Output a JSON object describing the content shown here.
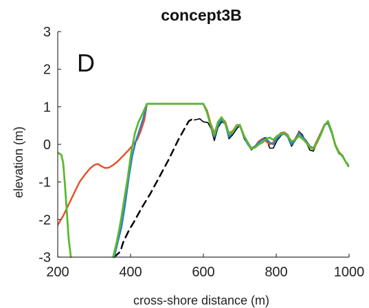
{
  "chart_data": {
    "type": "line",
    "title": "concept3B",
    "panel_letter": "D",
    "xlabel": "cross-shore distance (m)",
    "ylabel": "elevation (m)",
    "xlim": [
      200,
      1000
    ],
    "ylim": [
      -3,
      3
    ],
    "xticks": [
      200,
      400,
      600,
      800,
      1000
    ],
    "yticks": [
      -3,
      -2,
      -1,
      0,
      1,
      2,
      3
    ],
    "grid": false,
    "box": false,
    "series": [
      {
        "color": "#000000",
        "dash": "10,7",
        "width": 2.5,
        "points": [
          [
            355,
            -3.0
          ],
          [
            372,
            -2.85
          ],
          [
            380,
            -2.6
          ],
          [
            395,
            -2.3
          ],
          [
            410,
            -2.05
          ],
          [
            430,
            -1.7
          ],
          [
            455,
            -1.3
          ],
          [
            480,
            -0.85
          ],
          [
            505,
            -0.4
          ],
          [
            530,
            0.1
          ],
          [
            550,
            0.45
          ],
          [
            560,
            0.62
          ],
          [
            575,
            0.7
          ]
        ]
      },
      {
        "color": "#000000",
        "dash": "",
        "width": 1.6,
        "points": [
          [
            575,
            0.65
          ],
          [
            590,
            0.68
          ],
          [
            600,
            0.6
          ],
          [
            612,
            0.58
          ],
          [
            622,
            0.4
          ],
          [
            630,
            0.1
          ],
          [
            640,
            0.45
          ],
          [
            650,
            0.6
          ],
          [
            660,
            0.55
          ],
          [
            670,
            0.15
          ],
          [
            680,
            0.25
          ],
          [
            692,
            0.42
          ],
          [
            700,
            0.5
          ],
          [
            712,
            0.15
          ],
          [
            722,
            0.0
          ],
          [
            732,
            -0.15
          ],
          [
            742,
            -0.05
          ],
          [
            752,
            0.05
          ],
          [
            762,
            0.15
          ],
          [
            772,
            0.18
          ],
          [
            782,
            -0.1
          ],
          [
            792,
            -0.1
          ],
          [
            802,
            0.1
          ],
          [
            812,
            0.22
          ],
          [
            822,
            0.32
          ],
          [
            832,
            0.18
          ],
          [
            842,
            -0.05
          ],
          [
            852,
            0.1
          ],
          [
            862,
            0.35
          ],
          [
            872,
            0.25
          ],
          [
            882,
            0.05
          ],
          [
            892,
            -0.15
          ],
          [
            902,
            -0.18
          ],
          [
            912,
            0.05
          ],
          [
            922,
            0.3
          ],
          [
            932,
            0.52
          ],
          [
            942,
            0.55
          ],
          [
            952,
            0.3
          ],
          [
            962,
            -0.05
          ],
          [
            972,
            -0.25
          ],
          [
            982,
            -0.3
          ],
          [
            990,
            -0.45
          ],
          [
            998,
            -0.55
          ]
        ]
      },
      {
        "color": "#e8502a",
        "dash": "",
        "width": 2.5,
        "points": [
          [
            200,
            -2.15
          ],
          [
            215,
            -1.9
          ],
          [
            230,
            -1.6
          ],
          [
            245,
            -1.3
          ],
          [
            260,
            -1.0
          ],
          [
            275,
            -0.8
          ],
          [
            288,
            -0.65
          ],
          [
            300,
            -0.55
          ],
          [
            310,
            -0.52
          ],
          [
            320,
            -0.58
          ],
          [
            330,
            -0.63
          ],
          [
            340,
            -0.62
          ],
          [
            352,
            -0.55
          ],
          [
            365,
            -0.45
          ],
          [
            380,
            -0.3
          ],
          [
            395,
            -0.15
          ],
          [
            408,
            0.0
          ],
          [
            418,
            0.12
          ],
          [
            428,
            0.35
          ],
          [
            438,
            0.65
          ],
          [
            445,
            1.08
          ],
          [
            600,
            1.08
          ],
          [
            610,
            0.9
          ],
          [
            620,
            0.55
          ],
          [
            630,
            0.3
          ],
          [
            640,
            0.55
          ],
          [
            650,
            0.7
          ],
          [
            660,
            0.6
          ],
          [
            670,
            0.3
          ],
          [
            680,
            0.35
          ],
          [
            692,
            0.52
          ],
          [
            700,
            0.5
          ],
          [
            712,
            0.2
          ],
          [
            722,
            0.05
          ],
          [
            732,
            -0.1
          ],
          [
            742,
            -0.05
          ],
          [
            752,
            0.08
          ],
          [
            762,
            0.15
          ],
          [
            772,
            0.08
          ],
          [
            782,
            0.0
          ],
          [
            792,
            0.05
          ],
          [
            802,
            0.2
          ],
          [
            812,
            0.3
          ],
          [
            822,
            0.32
          ],
          [
            832,
            0.25
          ],
          [
            842,
            0.0
          ],
          [
            852,
            0.15
          ],
          [
            862,
            0.32
          ],
          [
            872,
            0.2
          ],
          [
            882,
            0.1
          ],
          [
            892,
            -0.05
          ],
          [
            902,
            -0.1
          ],
          [
            912,
            0.1
          ],
          [
            922,
            0.3
          ],
          [
            932,
            0.52
          ],
          [
            942,
            0.6
          ],
          [
            952,
            0.35
          ],
          [
            962,
            0.0
          ],
          [
            972,
            -0.2
          ],
          [
            982,
            -0.3
          ],
          [
            990,
            -0.45
          ],
          [
            998,
            -0.55
          ]
        ]
      },
      {
        "color": "#2a7fc9",
        "dash": "",
        "width": 2.5,
        "points": [
          [
            355,
            -3.0
          ],
          [
            365,
            -2.6
          ],
          [
            375,
            -2.2
          ],
          [
            385,
            -1.6
          ],
          [
            395,
            -0.9
          ],
          [
            405,
            -0.3
          ],
          [
            415,
            0.1
          ],
          [
            425,
            0.4
          ],
          [
            435,
            0.7
          ],
          [
            445,
            1.08
          ],
          [
            600,
            1.08
          ],
          [
            610,
            0.85
          ],
          [
            620,
            0.5
          ],
          [
            630,
            0.2
          ],
          [
            640,
            0.5
          ],
          [
            650,
            0.65
          ],
          [
            660,
            0.55
          ],
          [
            670,
            0.2
          ],
          [
            680,
            0.3
          ],
          [
            692,
            0.48
          ],
          [
            700,
            0.5
          ],
          [
            712,
            0.2
          ],
          [
            722,
            0.0
          ],
          [
            732,
            -0.12
          ],
          [
            742,
            -0.05
          ],
          [
            752,
            0.05
          ],
          [
            762,
            0.12
          ],
          [
            772,
            0.15
          ],
          [
            782,
            0.05
          ],
          [
            792,
            0.0
          ],
          [
            802,
            0.15
          ],
          [
            812,
            0.25
          ],
          [
            822,
            0.28
          ],
          [
            832,
            0.2
          ],
          [
            842,
            0.0
          ],
          [
            852,
            0.1
          ],
          [
            862,
            0.3
          ],
          [
            872,
            0.2
          ],
          [
            882,
            0.08
          ],
          [
            892,
            -0.05
          ],
          [
            902,
            -0.12
          ],
          [
            912,
            0.05
          ],
          [
            922,
            0.28
          ],
          [
            932,
            0.5
          ],
          [
            942,
            0.58
          ],
          [
            952,
            0.32
          ],
          [
            962,
            -0.02
          ],
          [
            972,
            -0.22
          ],
          [
            982,
            -0.3
          ],
          [
            990,
            -0.45
          ],
          [
            998,
            -0.55
          ]
        ]
      },
      {
        "color": "#5cb82c",
        "dash": "",
        "width": 2.8,
        "points": [
          [
            200,
            -0.22
          ],
          [
            210,
            -0.28
          ],
          [
            215,
            -0.5
          ],
          [
            220,
            -1.1
          ],
          [
            225,
            -1.8
          ],
          [
            230,
            -2.5
          ],
          [
            236,
            -3.0
          ],
          null,
          [
            352,
            -3.0
          ],
          [
            362,
            -2.6
          ],
          [
            372,
            -2.1
          ],
          [
            382,
            -1.5
          ],
          [
            392,
            -0.9
          ],
          [
            402,
            -0.2
          ],
          [
            412,
            0.3
          ],
          [
            422,
            0.6
          ],
          [
            432,
            0.8
          ],
          [
            445,
            1.08
          ],
          [
            600,
            1.08
          ],
          [
            610,
            0.85
          ],
          [
            620,
            0.5
          ],
          [
            630,
            0.25
          ],
          [
            640,
            0.6
          ],
          [
            650,
            0.72
          ],
          [
            660,
            0.55
          ],
          [
            670,
            0.28
          ],
          [
            680,
            0.32
          ],
          [
            692,
            0.5
          ],
          [
            700,
            0.52
          ],
          [
            712,
            0.22
          ],
          [
            722,
            0.05
          ],
          [
            732,
            -0.12
          ],
          [
            742,
            -0.08
          ],
          [
            752,
            0.0
          ],
          [
            762,
            0.05
          ],
          [
            772,
            0.15
          ],
          [
            782,
            0.18
          ],
          [
            792,
            0.12
          ],
          [
            802,
            0.22
          ],
          [
            812,
            0.28
          ],
          [
            822,
            0.3
          ],
          [
            832,
            0.22
          ],
          [
            842,
            0.08
          ],
          [
            852,
            0.12
          ],
          [
            862,
            0.22
          ],
          [
            872,
            0.15
          ],
          [
            882,
            0.05
          ],
          [
            892,
            -0.08
          ],
          [
            902,
            -0.12
          ],
          [
            912,
            0.05
          ],
          [
            922,
            0.25
          ],
          [
            932,
            0.5
          ],
          [
            942,
            0.62
          ],
          [
            952,
            0.35
          ],
          [
            962,
            -0.02
          ],
          [
            972,
            -0.22
          ],
          [
            982,
            -0.32
          ],
          [
            990,
            -0.45
          ],
          [
            998,
            -0.58
          ]
        ]
      }
    ]
  }
}
